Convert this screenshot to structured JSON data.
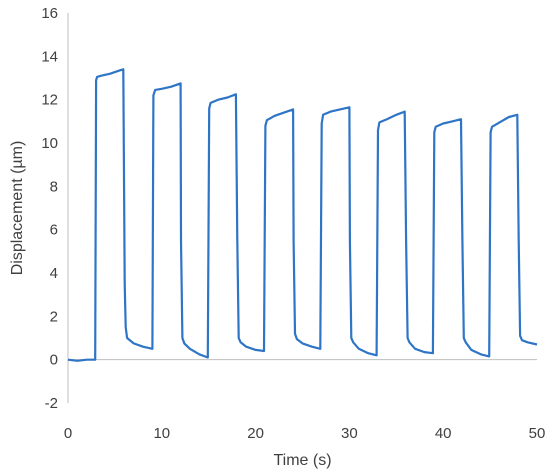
{
  "chart_data": {
    "type": "line",
    "title": "",
    "xlabel": "Time (s)",
    "ylabel": "Displacement (µm)",
    "xlim": [
      0,
      50
    ],
    "ylim": [
      -2,
      16
    ],
    "x_ticks": [
      0,
      10,
      20,
      30,
      40,
      50
    ],
    "y_ticks": [
      -2,
      0,
      2,
      4,
      6,
      8,
      10,
      12,
      14,
      16
    ],
    "x_tick_labels": [
      "0",
      "10",
      "20",
      "30",
      "40",
      "50"
    ],
    "y_tick_labels": [
      "-2",
      "0",
      "2",
      "4",
      "6",
      "8",
      "10",
      "12",
      "14",
      "16"
    ],
    "grid": false,
    "legend": "none",
    "series": [
      {
        "color": "#2e75c6",
        "x": [
          0,
          1,
          2,
          2.9,
          3.0,
          3.1,
          3.5,
          4.5,
          5.5,
          5.9,
          6.05,
          6.15,
          6.3,
          7,
          8,
          9,
          9.1,
          9.3,
          10,
          11,
          12.0,
          12.05,
          12.2,
          12.4,
          13,
          14,
          14.9,
          15.05,
          15.2,
          16,
          17,
          17.9,
          18.05,
          18.2,
          18.4,
          19,
          20,
          20.9,
          21.05,
          21.2,
          22,
          23,
          24,
          24.05,
          24.2,
          24.4,
          25,
          26,
          26.9,
          27.05,
          27.2,
          28,
          29,
          30,
          30.05,
          30.2,
          30.4,
          31,
          32,
          32.9,
          33.05,
          33.2,
          34,
          35,
          35.9,
          36.05,
          36.2,
          36.4,
          37,
          38,
          38.9,
          39.05,
          39.2,
          40,
          41,
          41.9,
          42.05,
          42.2,
          42.4,
          43,
          44,
          44.9,
          45.05,
          45.2,
          46,
          47,
          47.9,
          48.05,
          48.2,
          48.4,
          49,
          50
        ],
        "y": [
          0.0,
          -0.05,
          0.0,
          0.0,
          12.9,
          13.05,
          13.1,
          13.2,
          13.35,
          13.4,
          3.5,
          1.5,
          1.0,
          0.75,
          0.6,
          0.5,
          12.2,
          12.45,
          12.5,
          12.6,
          12.75,
          5.5,
          1.0,
          0.75,
          0.5,
          0.25,
          0.1,
          11.6,
          11.85,
          12.0,
          12.1,
          12.25,
          5.5,
          1.0,
          0.8,
          0.6,
          0.45,
          0.4,
          10.8,
          11.05,
          11.25,
          11.4,
          11.55,
          5.5,
          1.2,
          0.95,
          0.75,
          0.6,
          0.5,
          10.9,
          11.3,
          11.45,
          11.55,
          11.65,
          5.5,
          1.0,
          0.8,
          0.5,
          0.3,
          0.2,
          10.6,
          10.95,
          11.1,
          11.3,
          11.45,
          5.5,
          1.0,
          0.8,
          0.5,
          0.35,
          0.3,
          10.5,
          10.75,
          10.9,
          11.0,
          11.1,
          5.5,
          1.0,
          0.8,
          0.45,
          0.25,
          0.15,
          10.5,
          10.75,
          10.95,
          11.2,
          11.3,
          5.5,
          1.1,
          0.9,
          0.8,
          0.7
        ]
      }
    ]
  }
}
